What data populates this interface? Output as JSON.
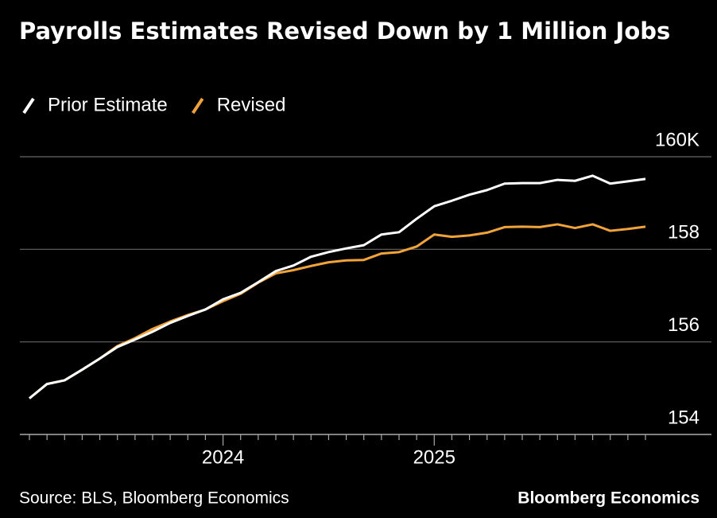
{
  "chart_data": {
    "type": "line",
    "title": "Payrolls Estimates Revised Down by 1 Million Jobs",
    "source": "Source: BLS, Bloomberg Economics",
    "brand": "Bloomberg Economics",
    "categories": [
      null,
      null,
      null,
      null,
      null,
      null,
      null,
      null,
      null,
      null,
      null,
      "2024",
      null,
      null,
      null,
      null,
      null,
      null,
      null,
      null,
      null,
      null,
      null,
      "2025",
      null,
      null,
      null,
      null,
      null,
      null,
      null,
      null,
      null,
      null,
      null,
      null
    ],
    "series": [
      {
        "name": "Prior Estimate",
        "color": "#ffffff",
        "values": [
          154.78,
          155.09,
          155.17,
          155.4,
          155.64,
          155.89,
          156.05,
          156.22,
          156.41,
          156.56,
          156.7,
          156.92,
          157.06,
          157.29,
          157.53,
          157.65,
          157.84,
          157.94,
          158.02,
          158.09,
          158.32,
          158.37,
          158.66,
          158.93,
          159.05,
          159.18,
          159.28,
          159.42,
          159.43,
          159.43,
          159.5,
          159.48,
          159.59,
          159.42,
          159.47,
          159.52
        ]
      },
      {
        "name": "Revised",
        "color": "#f0a33a",
        "values": [
          154.78,
          155.09,
          155.17,
          155.4,
          155.64,
          155.91,
          156.08,
          156.28,
          156.44,
          156.58,
          156.7,
          156.88,
          157.04,
          157.28,
          157.48,
          157.55,
          157.64,
          157.72,
          157.76,
          157.77,
          157.91,
          157.94,
          158.06,
          158.32,
          158.27,
          158.3,
          158.36,
          158.48,
          158.49,
          158.48,
          158.54,
          158.46,
          158.54,
          158.4,
          158.44,
          158.49
        ]
      }
    ],
    "ylim": [
      154,
      160
    ],
    "yticks": [
      154,
      156,
      158,
      {
        "value": 160,
        "label": "160K"
      }
    ],
    "grid": true
  }
}
